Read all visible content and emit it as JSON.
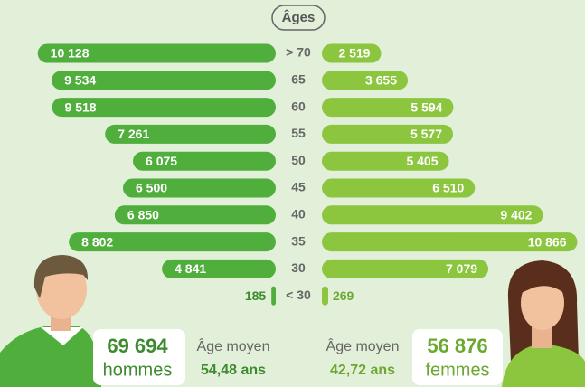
{
  "chart_data": {
    "type": "pyramid",
    "title": "Âges",
    "categories": [
      "> 70",
      "65",
      "60",
      "55",
      "50",
      "45",
      "40",
      "35",
      "30",
      "< 30"
    ],
    "series": [
      {
        "name": "hommes",
        "color": "#4fae3c",
        "side": "left",
        "values": [
          10128,
          9534,
          9518,
          7261,
          6075,
          6500,
          6850,
          8802,
          4841,
          185
        ],
        "value_labels": [
          "10 128",
          "9 534",
          "9 518",
          "7 261",
          "6 075",
          "6 500",
          "6 850",
          "8 802",
          "4 841",
          "185"
        ],
        "total": "69 694",
        "mean_age_title": "Âge moyen",
        "mean_age": "54,48 ans"
      },
      {
        "name": "femmes",
        "color": "#8cc63e",
        "side": "right",
        "values": [
          2519,
          3655,
          5594,
          5577,
          5405,
          6510,
          9402,
          10866,
          7079,
          269
        ],
        "value_labels": [
          "2 519",
          "3 655",
          "5 594",
          "5 577",
          "5 405",
          "6 510",
          "9 402",
          "10 866",
          "7 079",
          "269"
        ],
        "total": "56 876",
        "mean_age_title": "Âge moyen",
        "mean_age": "42,72 ans"
      }
    ]
  }
}
